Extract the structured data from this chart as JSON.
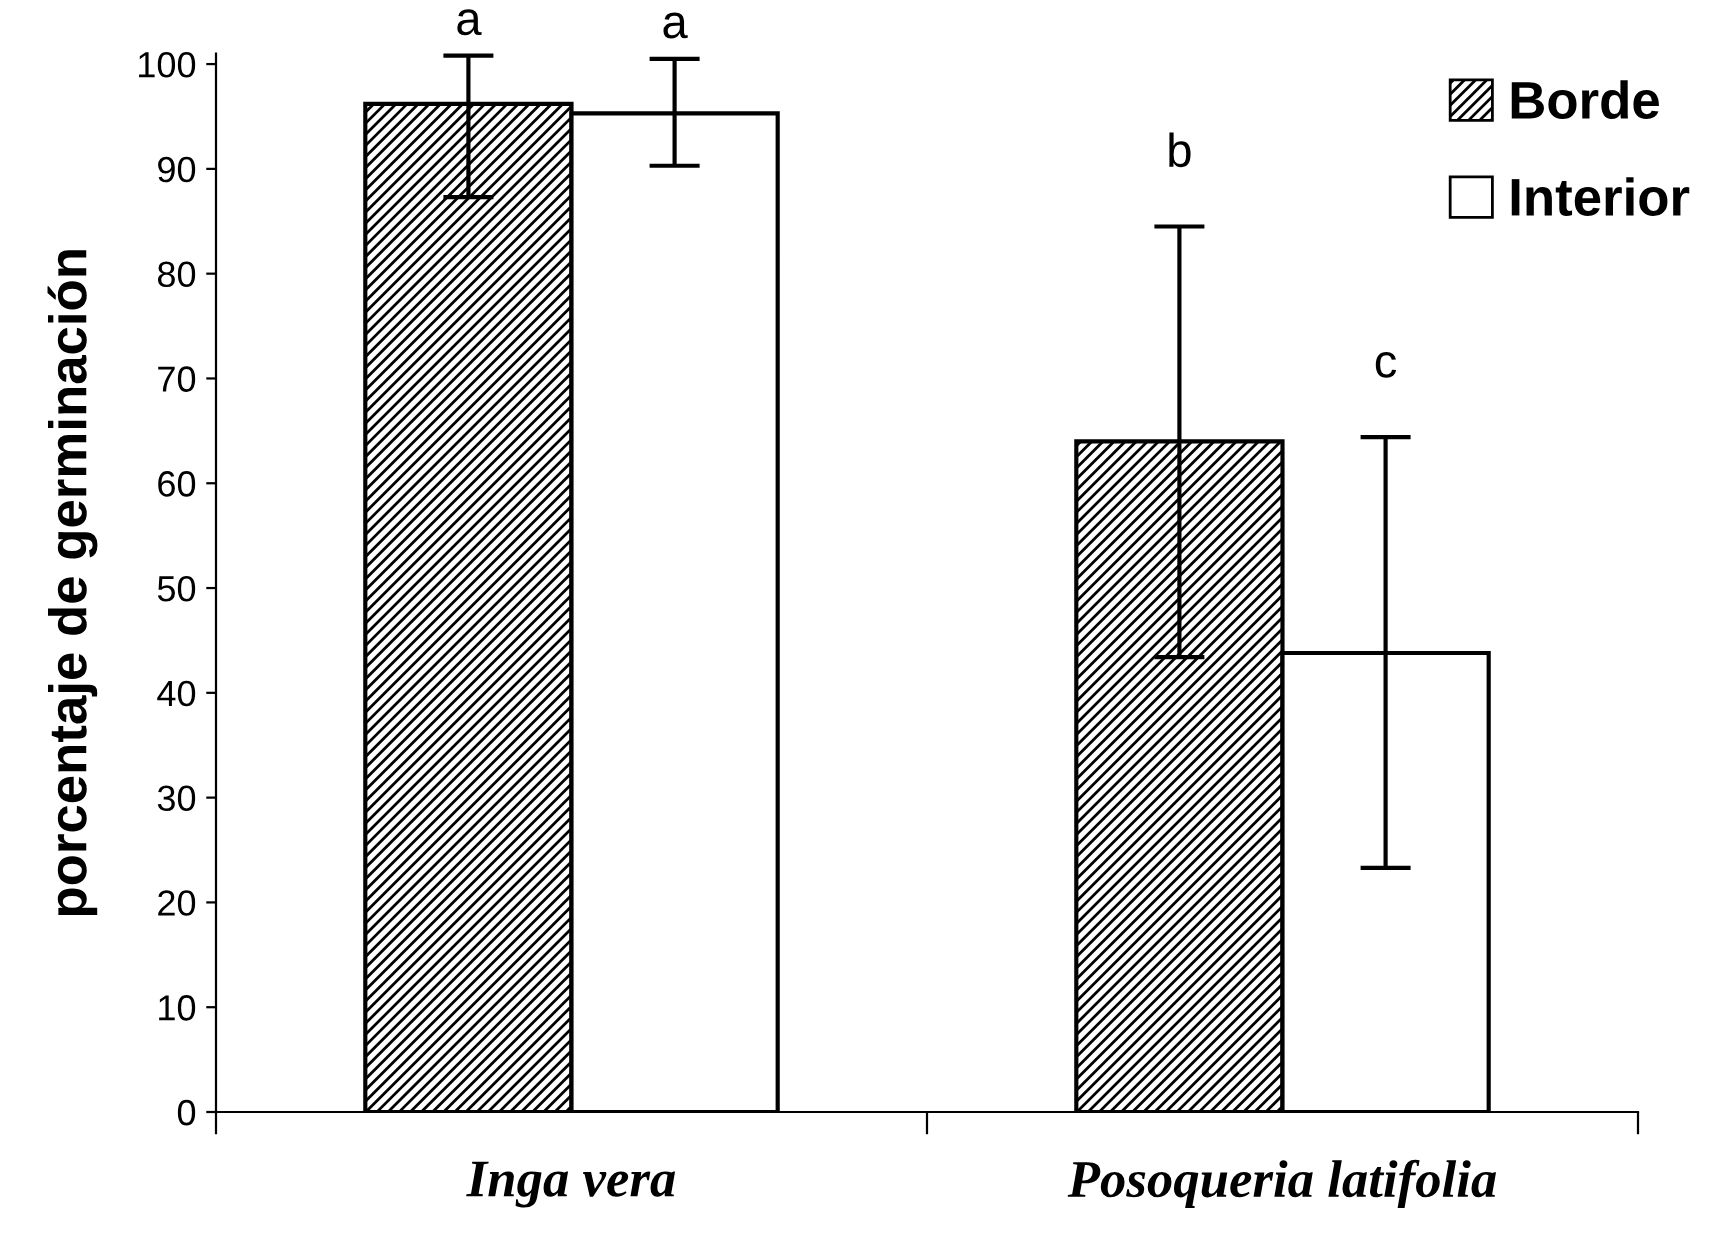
{
  "chart_data": {
    "type": "bar",
    "ylabel": "porcentaje de germinación",
    "categories": [
      "Inga vera",
      "Posoqueria latifolia"
    ],
    "series": [
      {
        "name": "Borde",
        "color": "#000000",
        "values": [
          96.2,
          64.0
        ],
        "errors": [
          [
            87.3,
            100.8
          ],
          [
            43.4,
            84.5
          ]
        ]
      },
      {
        "name": "Interior",
        "color": "#ffffff",
        "values": [
          95.3,
          43.8
        ],
        "errors": [
          [
            90.3,
            100.5
          ],
          [
            23.3,
            64.4
          ]
        ]
      }
    ],
    "ylim": [
      0,
      101
    ],
    "yticks": [
      0,
      10,
      20,
      30,
      40,
      50,
      60,
      70,
      80,
      90,
      100
    ],
    "annotations": [
      "a",
      "a",
      "b",
      "c"
    ],
    "grid": false,
    "legend": "top right"
  }
}
